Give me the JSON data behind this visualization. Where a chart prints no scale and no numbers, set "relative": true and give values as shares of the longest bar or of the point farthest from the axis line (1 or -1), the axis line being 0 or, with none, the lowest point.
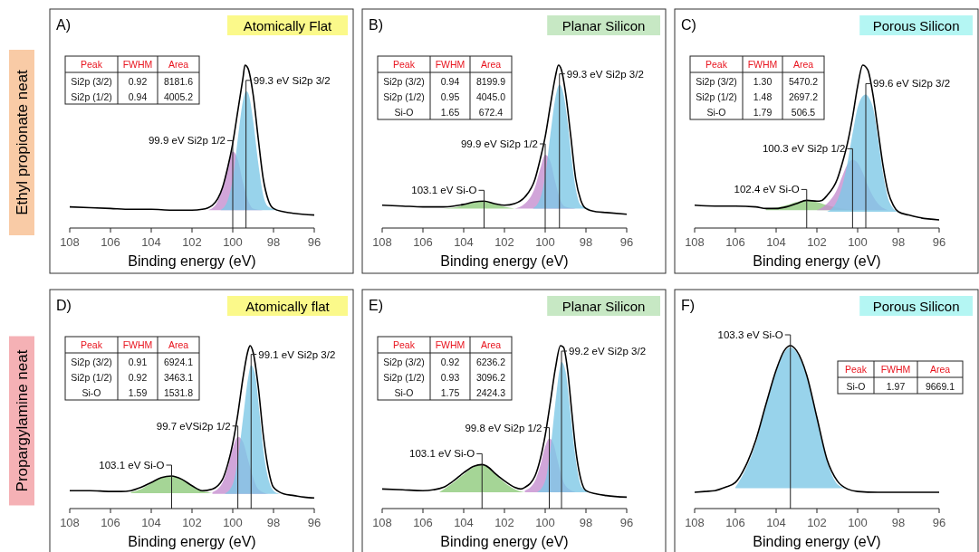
{
  "chart_data": [
    {
      "type": "area",
      "title": "A)",
      "subtitle": "Atomically Flat",
      "xlabel": "Binding energy (eV)",
      "relative": true,
      "xlim": [
        108,
        96
      ],
      "xticks": [
        108,
        106,
        104,
        102,
        100,
        98,
        96
      ],
      "annotations": [
        {
          "text": "99.3 eV Si2p 3/2",
          "x": 99.35,
          "y": 0.84
        },
        {
          "text": "99.9 eV Si2p 1/2",
          "x": 100,
          "y": 0.47
        },
        "Peak",
        "FWHM",
        "Area",
        "Si2p (3/2)",
        "0.92",
        "8181.6",
        "Si2p (1/2)",
        "0.94",
        "4005.2"
      ],
      "series": [
        {
          "type": "area",
          "color": "#c58fcf",
          "x": [
            101.2,
            100.8,
            100.5,
            100.25,
            100,
            99.75,
            99.5,
            99.25,
            99,
            98.5
          ],
          "values": [
            0.11,
            0.15,
            0.25,
            0.38,
            0.47,
            0.42,
            0.28,
            0.17,
            0.12,
            0.11
          ]
        },
        {
          "type": "area",
          "color": "#7ec8e6",
          "x": [
            100.6,
            100.25,
            100,
            99.75,
            99.5,
            99.35,
            99.25,
            99,
            98.75,
            98.5,
            98.25,
            97.8
          ],
          "values": [
            0.11,
            0.17,
            0.3,
            0.55,
            0.78,
            0.84,
            0.83,
            0.66,
            0.4,
            0.2,
            0.13,
            0.11
          ]
        },
        {
          "type": "line",
          "color": "#000000",
          "x": [
            108,
            107,
            106,
            105,
            104,
            103,
            102,
            101.5,
            101,
            100.5,
            100.25,
            100,
            99.75,
            99.5,
            99.4,
            99.25,
            99,
            98.75,
            98.5,
            98.25,
            98,
            97.5,
            97,
            96
          ],
          "values": [
            0.13,
            0.125,
            0.12,
            0.115,
            0.115,
            0.11,
            0.11,
            0.115,
            0.14,
            0.25,
            0.37,
            0.52,
            0.72,
            0.92,
            1,
            0.98,
            0.82,
            0.55,
            0.3,
            0.17,
            0.12,
            0.1,
            0.09,
            0.08
          ]
        }
      ]
    },
    {
      "type": "area",
      "title": "B)",
      "subtitle": "Planar Silicon",
      "xlabel": "Binding energy (eV)",
      "relative": true,
      "xlim": [
        108,
        96
      ],
      "xticks": [
        108,
        106,
        104,
        102,
        100,
        98,
        96
      ],
      "annotations": [
        {
          "text": "99.3 eV Si2p 3/2",
          "x": 99.3,
          "y": 0.88
        },
        {
          "text": "99.9 eV Si2p 1/2",
          "x": 100,
          "y": 0.45
        },
        {
          "text": "103.1 eV Si-O",
          "x": 103,
          "y": 0.165
        },
        "Peak",
        "FWHM",
        "Area",
        "Si2p (3/2)",
        "0.94",
        "8199.9",
        "Si2p (1/2)",
        "0.95",
        "4045.0",
        "Si-O",
        "1.65",
        "672.4"
      ],
      "series": [
        {
          "type": "area",
          "color": "#8fca7c",
          "x": [
            105,
            104.5,
            104,
            103.5,
            103,
            102.5,
            102,
            101.5
          ],
          "values": [
            0.12,
            0.125,
            0.14,
            0.16,
            0.165,
            0.15,
            0.13,
            0.12
          ]
        },
        {
          "type": "area",
          "color": "#c58fcf",
          "x": [
            101.5,
            101,
            100.5,
            100.25,
            100,
            99.75,
            99.5,
            99.25,
            99,
            98.5
          ],
          "values": [
            0.12,
            0.15,
            0.25,
            0.36,
            0.45,
            0.41,
            0.28,
            0.17,
            0.13,
            0.12
          ]
        },
        {
          "type": "area",
          "color": "#7ec8e6",
          "x": [
            100.6,
            100.25,
            100,
            99.75,
            99.5,
            99.3,
            99.1,
            98.9,
            98.7,
            98.5,
            98.25,
            97.8
          ],
          "values": [
            0.12,
            0.18,
            0.32,
            0.57,
            0.8,
            0.88,
            0.82,
            0.65,
            0.42,
            0.24,
            0.14,
            0.12
          ]
        },
        {
          "type": "line",
          "color": "#000000",
          "x": [
            108,
            107,
            106,
            105,
            104.5,
            104,
            103.5,
            103,
            102.5,
            102,
            101.5,
            101,
            100.5,
            100.25,
            100,
            99.75,
            99.5,
            99.35,
            99.2,
            99,
            98.75,
            98.5,
            98.25,
            98,
            97.5,
            97,
            96
          ],
          "values": [
            0.14,
            0.135,
            0.13,
            0.13,
            0.135,
            0.145,
            0.16,
            0.165,
            0.15,
            0.14,
            0.15,
            0.19,
            0.3,
            0.42,
            0.56,
            0.75,
            0.93,
            1,
            0.97,
            0.83,
            0.57,
            0.3,
            0.17,
            0.12,
            0.1,
            0.095,
            0.085
          ]
        }
      ]
    },
    {
      "type": "area",
      "title": "C)",
      "subtitle": "Porous Silicon",
      "xlabel": "Binding energy (eV)",
      "relative": true,
      "xlim": [
        108,
        96
      ],
      "xticks": [
        108,
        106,
        104,
        102,
        100,
        98,
        96
      ],
      "annotations": [
        {
          "text": "99.6 eV Si2p 3/2",
          "x": 99.6,
          "y": 0.82
        },
        {
          "text": "100.3 eV Si2p 1/2",
          "x": 100.25,
          "y": 0.42
        },
        {
          "text": "102.4 eV Si-O",
          "x": 102.5,
          "y": 0.17
        },
        "Peak",
        "FWHM",
        "Area",
        "Si2p (3/2)",
        "1.30",
        "5470.2",
        "Si2p (1/2)",
        "1.48",
        "2697.2",
        "Si-O",
        "1.79",
        "506.5"
      ],
      "series": [
        {
          "type": "area",
          "color": "#8fca7c",
          "x": [
            104.5,
            104,
            103.5,
            103,
            102.5,
            102,
            101.5,
            101,
            100.5,
            100
          ],
          "values": [
            0.12,
            0.125,
            0.14,
            0.16,
            0.17,
            0.16,
            0.14,
            0.125,
            0.115,
            0.11
          ]
        },
        {
          "type": "area",
          "color": "#c58fcf",
          "x": [
            102,
            101.5,
            101,
            100.75,
            100.5,
            100.25,
            100,
            99.75,
            99.5,
            99,
            98.5
          ],
          "values": [
            0.11,
            0.15,
            0.24,
            0.32,
            0.39,
            0.42,
            0.4,
            0.34,
            0.26,
            0.15,
            0.11
          ]
        },
        {
          "type": "area",
          "color": "#7ec8e6",
          "x": [
            101.5,
            101,
            100.75,
            100.5,
            100.25,
            100,
            99.75,
            99.6,
            99.4,
            99.25,
            99,
            98.75,
            98.5,
            98.25,
            98
          ],
          "values": [
            0.1,
            0.17,
            0.26,
            0.4,
            0.58,
            0.74,
            0.81,
            0.82,
            0.79,
            0.74,
            0.55,
            0.33,
            0.18,
            0.12,
            0.1
          ]
        },
        {
          "type": "line",
          "color": "#000000",
          "x": [
            108,
            107,
            106,
            105,
            104.5,
            104,
            103.5,
            103,
            102.5,
            102,
            101.75,
            101.5,
            101,
            100.75,
            100.5,
            100.25,
            100,
            99.75,
            99.5,
            99.25,
            99,
            98.75,
            98.5,
            98.25,
            98,
            97.5,
            97,
            96
          ],
          "values": [
            0.14,
            0.135,
            0.135,
            0.13,
            0.12,
            0.12,
            0.13,
            0.15,
            0.17,
            0.165,
            0.17,
            0.2,
            0.3,
            0.4,
            0.52,
            0.68,
            0.87,
            1,
            0.97,
            0.82,
            0.6,
            0.38,
            0.22,
            0.14,
            0.1,
            0.08,
            0.065,
            0.05
          ]
        }
      ]
    },
    {
      "type": "area",
      "title": "D)",
      "subtitle": "Atomically flat",
      "xlabel": "Binding energy (eV)",
      "relative": true,
      "xlim": [
        108,
        96
      ],
      "xticks": [
        108,
        106,
        104,
        102,
        100,
        98,
        96
      ],
      "annotations": [
        {
          "text": "99.1 eV Si2p 3/2",
          "x": 99.1,
          "y": 0.88
        },
        {
          "text": "99.7 eVSi2p 1/2",
          "x": 99.75,
          "y": 0.44
        },
        {
          "text": "103.1 eV Si-O",
          "x": 103,
          "y": 0.2
        },
        "Peak",
        "FWHM",
        "Area",
        "Si2p (3/2)",
        "0.91",
        "6924.1",
        "Si2p (1/2)",
        "0.92",
        "3463.1",
        "Si-O",
        "1.59",
        "1531.8"
      ],
      "series": [
        {
          "type": "area",
          "color": "#8fca7c",
          "x": [
            105,
            104.5,
            104,
            103.5,
            103,
            102.5,
            102,
            101.5,
            101
          ],
          "values": [
            0.1,
            0.12,
            0.155,
            0.19,
            0.2,
            0.18,
            0.14,
            0.11,
            0.095
          ]
        },
        {
          "type": "area",
          "color": "#c58fcf",
          "x": [
            101,
            100.5,
            100.25,
            100,
            99.75,
            99.5,
            99.25,
            99,
            98.75,
            98.25
          ],
          "values": [
            0.1,
            0.16,
            0.25,
            0.37,
            0.44,
            0.41,
            0.3,
            0.19,
            0.12,
            0.09
          ]
        },
        {
          "type": "area",
          "color": "#7ec8e6",
          "x": [
            100.4,
            100,
            99.75,
            99.5,
            99.25,
            99.1,
            98.9,
            98.7,
            98.5,
            98.25,
            98,
            97.7
          ],
          "values": [
            0.09,
            0.15,
            0.3,
            0.55,
            0.8,
            0.88,
            0.82,
            0.6,
            0.36,
            0.18,
            0.11,
            0.09
          ]
        },
        {
          "type": "line",
          "color": "#000000",
          "x": [
            108,
            107,
            106,
            105.5,
            105,
            104.5,
            104,
            103.5,
            103,
            102.5,
            102,
            101.5,
            101,
            100.5,
            100.25,
            100,
            99.75,
            99.5,
            99.25,
            99.15,
            99,
            98.75,
            98.5,
            98.25,
            98,
            97.5,
            97,
            96.5,
            96
          ],
          "values": [
            0.11,
            0.11,
            0.105,
            0.105,
            0.11,
            0.13,
            0.16,
            0.19,
            0.2,
            0.18,
            0.14,
            0.11,
            0.12,
            0.18,
            0.27,
            0.4,
            0.58,
            0.8,
            0.97,
            1,
            0.96,
            0.75,
            0.45,
            0.24,
            0.13,
            0.09,
            0.08,
            0.07,
            0.065
          ]
        }
      ]
    },
    {
      "type": "area",
      "title": "E)",
      "subtitle": "Planar Silicon",
      "xlabel": "Binding energy (eV)",
      "relative": true,
      "xlim": [
        108,
        96
      ],
      "xticks": [
        108,
        106,
        104,
        102,
        100,
        98,
        96
      ],
      "annotations": [
        {
          "text": "99.2 eV Si2p 3/2",
          "x": 99.2,
          "y": 0.9
        },
        {
          "text": "99.8 eV Si2p 1/2",
          "x": 99.8,
          "y": 0.43
        },
        {
          "text": "103.1 eV Si-O",
          "x": 103.1,
          "y": 0.27
        },
        "Peak",
        "FWHM",
        "Area",
        "Si2p (3/2)",
        "0.92",
        "6236.2",
        "Si2p (1/2)",
        "0.93",
        "3096.2",
        "Si-O",
        "1.75",
        "2424.3"
      ],
      "series": [
        {
          "type": "area",
          "color": "#8fca7c",
          "x": [
            105.2,
            104.5,
            104,
            103.5,
            103.1,
            102.75,
            102.5,
            102,
            101.5,
            101
          ],
          "values": [
            0.1,
            0.16,
            0.21,
            0.255,
            0.27,
            0.25,
            0.22,
            0.16,
            0.12,
            0.1
          ]
        },
        {
          "type": "area",
          "color": "#c58fcf",
          "x": [
            101,
            100.5,
            100.25,
            100,
            99.8,
            99.6,
            99.4,
            99.2,
            99,
            98.5
          ],
          "values": [
            0.11,
            0.17,
            0.26,
            0.38,
            0.43,
            0.4,
            0.3,
            0.2,
            0.14,
            0.1
          ]
        },
        {
          "type": "area",
          "color": "#7ec8e6",
          "x": [
            100.4,
            100,
            99.75,
            99.5,
            99.3,
            99.2,
            99,
            98.8,
            98.6,
            98.4,
            98.2,
            97.8
          ],
          "values": [
            0.1,
            0.17,
            0.36,
            0.65,
            0.85,
            0.9,
            0.84,
            0.63,
            0.4,
            0.22,
            0.13,
            0.1
          ]
        },
        {
          "type": "line",
          "color": "#000000",
          "x": [
            108,
            107,
            106,
            105.5,
            105,
            104.5,
            104,
            103.5,
            103.1,
            102.75,
            102.5,
            102,
            101.5,
            101.2,
            101,
            100.5,
            100.25,
            100,
            99.75,
            99.5,
            99.25,
            99.1,
            98.9,
            98.7,
            98.5,
            98.25,
            98,
            97.5,
            97,
            96
          ],
          "values": [
            0.12,
            0.115,
            0.11,
            0.115,
            0.13,
            0.17,
            0.22,
            0.26,
            0.27,
            0.25,
            0.22,
            0.17,
            0.13,
            0.12,
            0.13,
            0.2,
            0.3,
            0.45,
            0.65,
            0.86,
            1,
            0.99,
            0.85,
            0.6,
            0.36,
            0.18,
            0.11,
            0.09,
            0.08,
            0.07
          ]
        }
      ]
    },
    {
      "type": "area",
      "title": "F)",
      "subtitle": "Porous Silicon",
      "xlabel": "Binding energy (eV)",
      "relative": true,
      "xlim": [
        108,
        96
      ],
      "xticks": [
        108,
        106,
        104,
        102,
        100,
        98,
        96
      ],
      "annotations": [
        {
          "text": "103.3 eV Si-O",
          "x": 103.3,
          "y": 1
        },
        "Peak",
        "FWHM",
        "Area",
        "Si-O",
        "1.97",
        "9669.1"
      ],
      "series": [
        {
          "type": "area",
          "color": "#7ec8e6",
          "x": [
            106,
            105.5,
            105,
            104.5,
            104,
            103.6,
            103.3,
            103,
            102.5,
            102,
            101.5,
            101,
            100.6
          ],
          "values": [
            0.13,
            0.24,
            0.4,
            0.63,
            0.84,
            0.96,
            0.99,
            0.96,
            0.81,
            0.55,
            0.29,
            0.15,
            0.125
          ]
        },
        {
          "type": "line",
          "color": "#000000",
          "x": [
            108,
            107.5,
            107,
            106.5,
            106,
            105.5,
            105,
            104.5,
            104,
            103.6,
            103.3,
            103,
            102.5,
            102,
            101.5,
            101,
            100.5,
            100,
            99,
            98,
            97,
            96
          ],
          "values": [
            0.1,
            0.105,
            0.11,
            0.13,
            0.16,
            0.26,
            0.42,
            0.64,
            0.85,
            0.97,
            1,
            0.97,
            0.82,
            0.56,
            0.3,
            0.17,
            0.12,
            0.105,
            0.1,
            0.1,
            0.1,
            0.1
          ]
        }
      ]
    },
    {
      "type": "other",
      "annotations": [
        "Ethyl propionate neat",
        "Propargylamine neat"
      ]
    }
  ]
}
